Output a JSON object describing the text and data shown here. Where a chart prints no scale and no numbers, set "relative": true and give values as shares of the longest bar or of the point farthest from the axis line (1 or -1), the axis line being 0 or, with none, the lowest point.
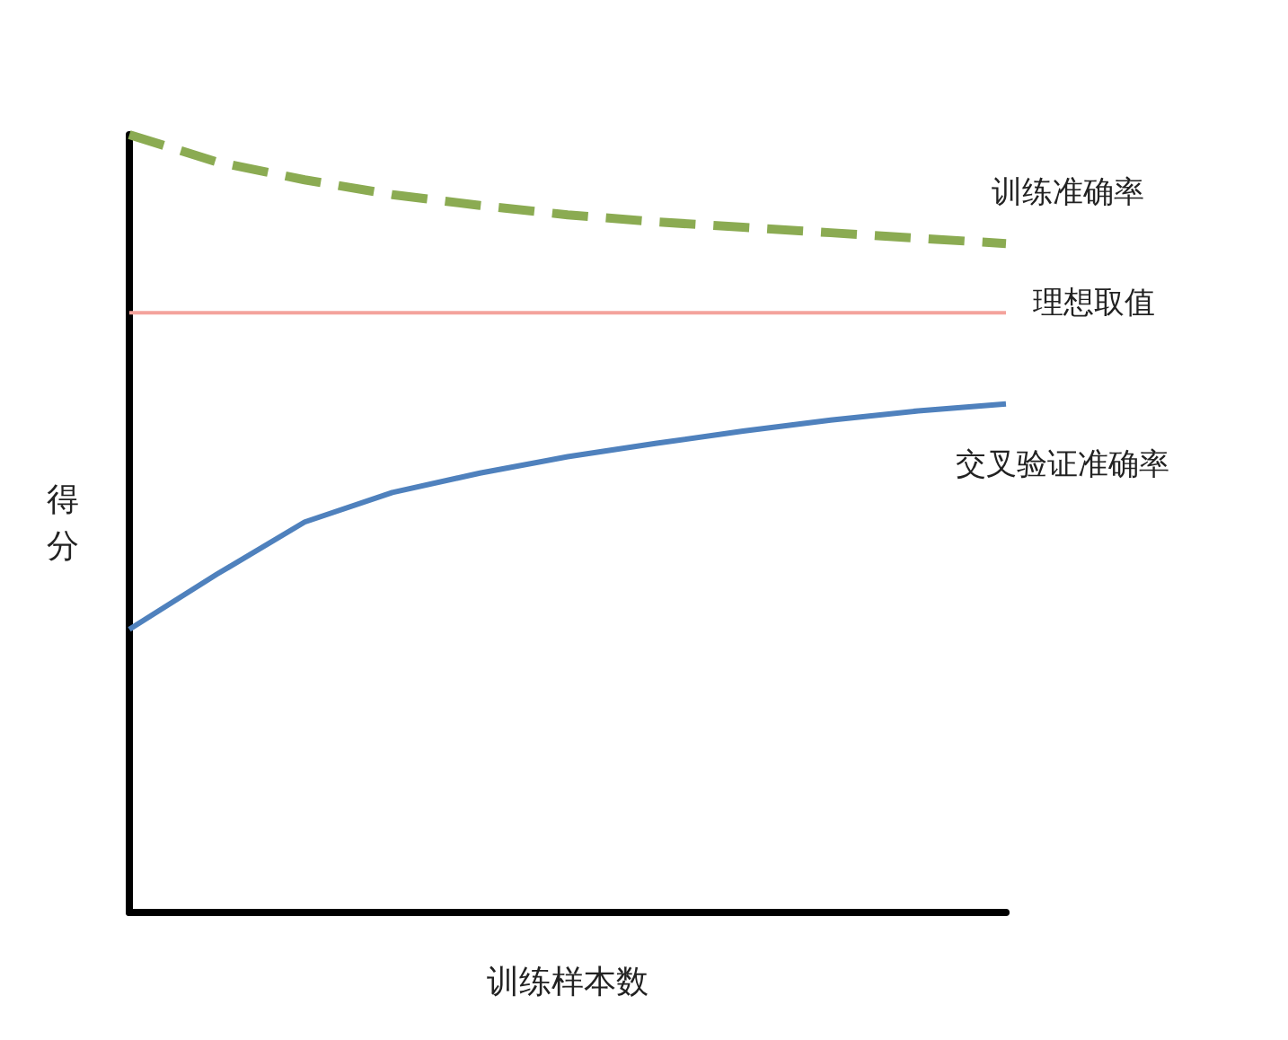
{
  "chart_data": {
    "type": "line",
    "relative": true,
    "xlabel": "训练样本数",
    "ylabel": "得分",
    "categories": [
      null,
      null,
      null,
      null,
      null,
      null,
      null,
      null,
      null,
      null,
      null
    ],
    "legend": false,
    "grid": false,
    "marker": "none",
    "series": [
      {
        "name": "训练准确率",
        "color": "#8bab52",
        "line_style": "dashed",
        "values": [
          1.0,
          0.965,
          0.942,
          0.923,
          0.909,
          0.897,
          0.888,
          0.881,
          0.874,
          0.867,
          0.86
        ]
      },
      {
        "name": "理想取值",
        "color": "#f4a39c",
        "line_style": "solid",
        "values": [
          0.771,
          0.771,
          0.771,
          0.771,
          0.771,
          0.771,
          0.771,
          0.771,
          0.771,
          0.771,
          0.771
        ]
      },
      {
        "name": "交叉验证准确率",
        "color": "#4f81bd",
        "line_style": "solid",
        "values": [
          0.364,
          0.435,
          0.502,
          0.54,
          0.565,
          0.586,
          0.603,
          0.619,
          0.633,
          0.645,
          0.654
        ]
      }
    ]
  }
}
